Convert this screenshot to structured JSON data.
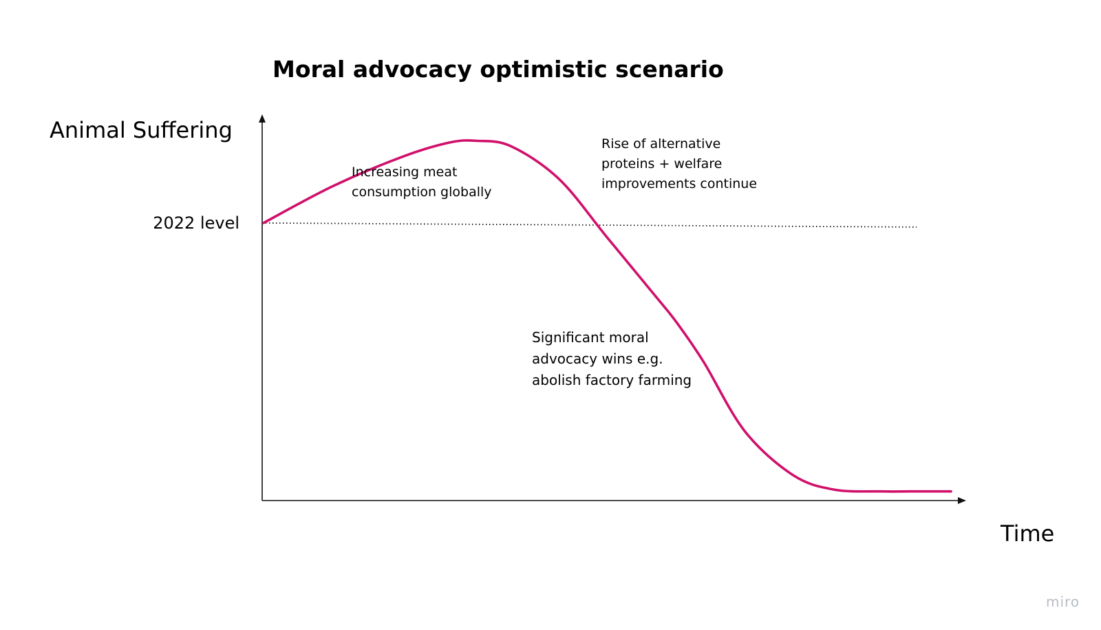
{
  "chart_data": {
    "type": "line",
    "title": "Moral advocacy optimistic scenario",
    "ylabel": "Animal Suffering",
    "xlabel": "Time",
    "xlim": [
      0,
      100
    ],
    "ylim": [
      0,
      100
    ],
    "grid": false,
    "reference_line": {
      "label": "2022 level",
      "y": 76
    },
    "series": [
      {
        "color": "#d0106b",
        "x": [
          0,
          10,
          20,
          27,
          31,
          36,
          43,
          50,
          57,
          60,
          64,
          70,
          77,
          83,
          90,
          94,
          100
        ],
        "y": [
          76,
          86,
          94,
          98,
          98.5,
          97,
          88,
          72,
          56,
          49,
          38,
          19,
          7,
          3,
          2.5,
          2.5,
          2.5
        ]
      }
    ],
    "annotations": [
      {
        "lines": [
          "Increasing meat",
          "consumption globally"
        ]
      },
      {
        "lines": [
          "Rise of alternative",
          "proteins + welfare",
          "improvements continue"
        ]
      },
      {
        "lines": [
          "Significant moral",
          "advocacy wins e.g.",
          "abolish factory farming"
        ]
      }
    ]
  },
  "watermark": "miro",
  "colors": {
    "curve": "#d0106b",
    "axis": "#111111",
    "watermark": "#b8bcc6"
  }
}
